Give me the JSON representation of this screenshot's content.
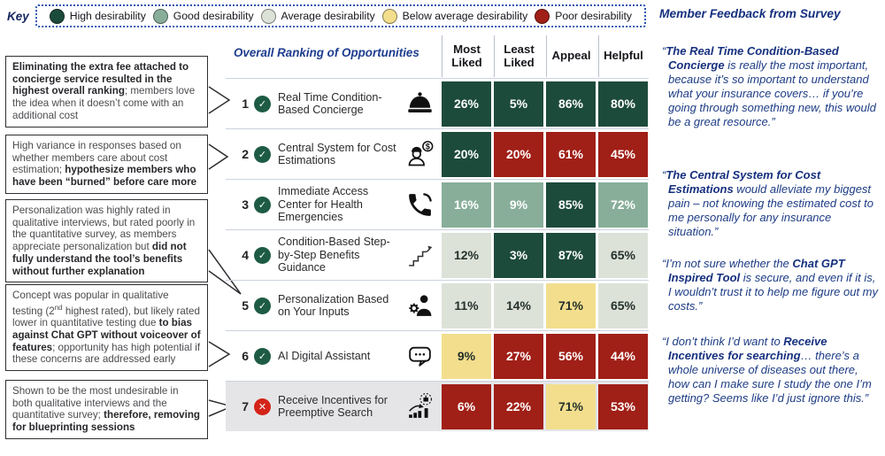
{
  "palette": {
    "high": "#1d4b3b",
    "good": "#88ae9a",
    "average": "#dde2d9",
    "below": "#f2de8d",
    "poor": "#a01f17",
    "check_green": "#1e5b44",
    "x_red": "#d42318",
    "row7_bg": "#e5e5e7",
    "navy": "#1d3c85"
  },
  "key": {
    "label": "Key",
    "items": [
      {
        "label": "High desirability",
        "level": "high"
      },
      {
        "label": "Good desirability",
        "level": "good"
      },
      {
        "label": "Average desirability",
        "level": "average"
      },
      {
        "label": "Below average desirability",
        "level": "below"
      },
      {
        "label": "Poor desirability",
        "level": "poor"
      }
    ]
  },
  "annotations": [
    {
      "segments": [
        {
          "t": "Eliminating the extra fee attached to concierge service resulted in the highest overall ranking",
          "b": true
        },
        {
          "t": "; members love the idea when it doesn’t come with an additional cost",
          "b": false
        }
      ]
    },
    {
      "segments": [
        {
          "t": "High variance in responses based on whether members care about cost estimation; ",
          "b": false
        },
        {
          "t": "hypothesize members who have been “burned” before care more",
          "b": true
        }
      ]
    },
    {
      "segments": [
        {
          "t": "Personalization was highly rated in qualitative interviews, but rated poorly in the quantitative survey, as members appreciate personalization but ",
          "b": false
        },
        {
          "t": "did not fully understand the tool’s benefits without further explanation",
          "b": true
        }
      ]
    },
    {
      "segments": [
        {
          "t": "Concept was popular in qualitative testing (2",
          "b": false
        },
        {
          "t": "nd",
          "b": false,
          "sup": true
        },
        {
          "t": " highest rated), but likely rated lower in quantitative testing due ",
          "b": false
        },
        {
          "t": "to bias against Chat GPT without voiceover of features",
          "b": true
        },
        {
          "t": "; opportunity has high potential if these concerns are addressed early",
          "b": false
        }
      ]
    },
    {
      "segments": [
        {
          "t": "Shown to be the most undesirable in both qualitative interviews and the quantitative survey; ",
          "b": false
        },
        {
          "t": "therefore, removing for blueprinting sessions",
          "b": true
        }
      ]
    }
  ],
  "table": {
    "title": "Overall Ranking of Opportunities",
    "columns": [
      "Most Liked",
      "Least Liked",
      "Appeal",
      "Helpful"
    ],
    "rows": [
      {
        "rank": "1",
        "status": "check",
        "name": "Real Time Condition-Based Concierge",
        "icon": "concierge-bell",
        "cells": [
          {
            "value": "26%",
            "level": "high"
          },
          {
            "value": "5%",
            "level": "high"
          },
          {
            "value": "86%",
            "level": "high"
          },
          {
            "value": "80%",
            "level": "high"
          }
        ]
      },
      {
        "rank": "2",
        "status": "check",
        "name": "Central System for Cost Estimations",
        "icon": "worker-cost",
        "cells": [
          {
            "value": "20%",
            "level": "high"
          },
          {
            "value": "20%",
            "level": "poor"
          },
          {
            "value": "61%",
            "level": "poor"
          },
          {
            "value": "45%",
            "level": "poor"
          }
        ]
      },
      {
        "rank": "3",
        "status": "check",
        "name": "Immediate Access Center for Health Emergencies",
        "icon": "phone",
        "cells": [
          {
            "value": "16%",
            "level": "good"
          },
          {
            "value": "9%",
            "level": "good"
          },
          {
            "value": "85%",
            "level": "high"
          },
          {
            "value": "72%",
            "level": "good"
          }
        ]
      },
      {
        "rank": "4",
        "status": "check",
        "name": "Condition-Based Step-by-Step Benefits Guidance",
        "icon": "steps",
        "cells": [
          {
            "value": "12%",
            "level": "average"
          },
          {
            "value": "3%",
            "level": "high"
          },
          {
            "value": "87%",
            "level": "high"
          },
          {
            "value": "65%",
            "level": "average"
          }
        ]
      },
      {
        "rank": "5",
        "status": "check",
        "name": "Personalization Based on Your Inputs",
        "icon": "person-gear",
        "cells": [
          {
            "value": "11%",
            "level": "average"
          },
          {
            "value": "14%",
            "level": "average"
          },
          {
            "value": "71%",
            "level": "below"
          },
          {
            "value": "65%",
            "level": "average"
          }
        ]
      },
      {
        "rank": "6",
        "status": "check",
        "name": "AI Digital Assistant",
        "icon": "chat",
        "cells": [
          {
            "value": "9%",
            "level": "below"
          },
          {
            "value": "27%",
            "level": "poor"
          },
          {
            "value": "56%",
            "level": "poor"
          },
          {
            "value": "44%",
            "level": "poor"
          }
        ]
      },
      {
        "rank": "7",
        "status": "x",
        "name": "Receive Incentives for Preemptive Search",
        "icon": "search-incentives",
        "highlight": true,
        "cells": [
          {
            "value": "6%",
            "level": "poor"
          },
          {
            "value": "22%",
            "level": "poor"
          },
          {
            "value": "71%",
            "level": "below"
          },
          {
            "value": "53%",
            "level": "poor"
          }
        ]
      }
    ]
  },
  "feedback": {
    "title": "Member Feedback from Survey",
    "quotes": [
      {
        "segments": [
          {
            "t": "“",
            "b": false
          },
          {
            "t": "The Real Time Condition-Based Concierge",
            "b": true
          },
          {
            "t": " is really the most important, because it’s so important to understand what your insurance covers… if you’re going through something new, this would be a great resource.”",
            "b": false
          }
        ]
      },
      {
        "segments": [
          {
            "t": "“",
            "b": false
          },
          {
            "t": "The Central System for Cost Estimations",
            "b": true
          },
          {
            "t": " would alleviate my biggest pain – not knowing the estimated cost to me personally for any insurance situation.”",
            "b": false
          }
        ]
      },
      {
        "segments": [
          {
            "t": "“I’m not sure whether the ",
            "b": false
          },
          {
            "t": "Chat GPT Inspired Tool",
            "b": true
          },
          {
            "t": " is secure, and even if it is, I wouldn’t trust it to help me figure out my costs.”",
            "b": false
          }
        ]
      },
      {
        "segments": [
          {
            "t": "“I don’t think I’d want to ",
            "b": false
          },
          {
            "t": "Receive Incentives for searching",
            "b": true
          },
          {
            "t": "… there’s a whole universe of diseases out there, how can I make sure I study the one I’m getting? Seems like I’d just ignore this.”",
            "b": false
          }
        ]
      }
    ]
  },
  "chart_data": {
    "type": "heatmap",
    "title": "Overall Ranking of Opportunities",
    "columns": [
      "Most Liked",
      "Least Liked",
      "Appeal",
      "Helpful"
    ],
    "rows": [
      "Real Time Condition-Based Concierge",
      "Central System for Cost Estimations",
      "Immediate Access Center for Health Emergencies",
      "Condition-Based Step-by-Step Benefits Guidance",
      "Personalization Based on Your Inputs",
      "AI Digital Assistant",
      "Receive Incentives for Preemptive Search"
    ],
    "values_percent": [
      [
        26,
        5,
        86,
        80
      ],
      [
        20,
        20,
        61,
        45
      ],
      [
        16,
        9,
        85,
        72
      ],
      [
        12,
        3,
        87,
        65
      ],
      [
        11,
        14,
        71,
        65
      ],
      [
        9,
        27,
        56,
        44
      ],
      [
        6,
        22,
        71,
        53
      ]
    ],
    "cell_desirability": [
      [
        "high",
        "high",
        "high",
        "high"
      ],
      [
        "high",
        "poor",
        "poor",
        "poor"
      ],
      [
        "good",
        "good",
        "high",
        "good"
      ],
      [
        "average",
        "high",
        "high",
        "average"
      ],
      [
        "average",
        "average",
        "below",
        "average"
      ],
      [
        "below",
        "poor",
        "poor",
        "poor"
      ],
      [
        "poor",
        "poor",
        "below",
        "poor"
      ]
    ],
    "legend": [
      "High desirability",
      "Good desirability",
      "Average desirability",
      "Below average desirability",
      "Poor desirability"
    ],
    "legend_position": "top",
    "row_status": [
      "check",
      "check",
      "check",
      "check",
      "check",
      "check",
      "x"
    ]
  }
}
